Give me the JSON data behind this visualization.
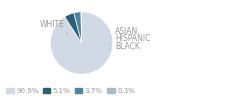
{
  "labels": [
    "WHITE",
    "ASIAN",
    "HISPANIC",
    "BLACK"
  ],
  "values": [
    90.9,
    5.1,
    3.7,
    0.3
  ],
  "colors": [
    "#d0d9e4",
    "#2e5f7a",
    "#4a86a0",
    "#a8bcc8"
  ],
  "legend_labels": [
    "90.9%",
    "5.1%",
    "3.7%",
    "0.3%"
  ],
  "legend_colors": [
    "#d0d9e4",
    "#2e5f7a",
    "#4a86a0",
    "#a8bcc8"
  ],
  "text_color": "#999999",
  "background_color": "#ffffff",
  "startangle": 90
}
